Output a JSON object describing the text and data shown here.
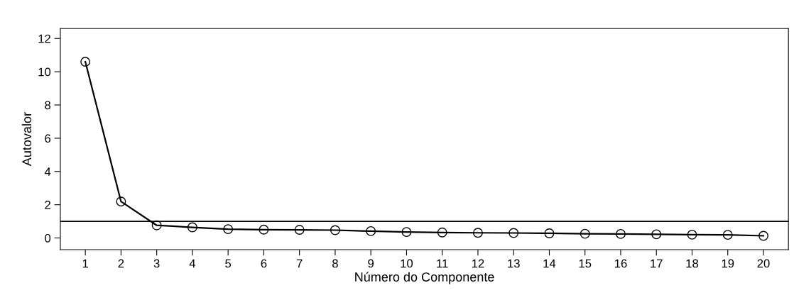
{
  "chart_data": {
    "type": "line",
    "xlabel": "Número do Componente",
    "ylabel": "Autovalor",
    "categories": [
      "1",
      "2",
      "3",
      "4",
      "5",
      "6",
      "7",
      "8",
      "9",
      "10",
      "11",
      "12",
      "13",
      "14",
      "15",
      "16",
      "17",
      "18",
      "19",
      "20"
    ],
    "series": [
      {
        "color": "#000000",
        "values": [
          10.6,
          2.19,
          0.76,
          0.64,
          0.53,
          0.5,
          0.49,
          0.47,
          0.41,
          0.36,
          0.33,
          0.31,
          0.3,
          0.28,
          0.25,
          0.24,
          0.22,
          0.2,
          0.19,
          0.13
        ]
      }
    ],
    "ylim": [
      -0.7,
      12.6
    ],
    "yticks": [
      0,
      2,
      4,
      6,
      8,
      10,
      12
    ],
    "ref_lines": [
      {
        "axis": "y",
        "value": 1.0,
        "color": "#000000"
      }
    ],
    "marker": "circle",
    "line_style": "solid",
    "grid": false
  }
}
